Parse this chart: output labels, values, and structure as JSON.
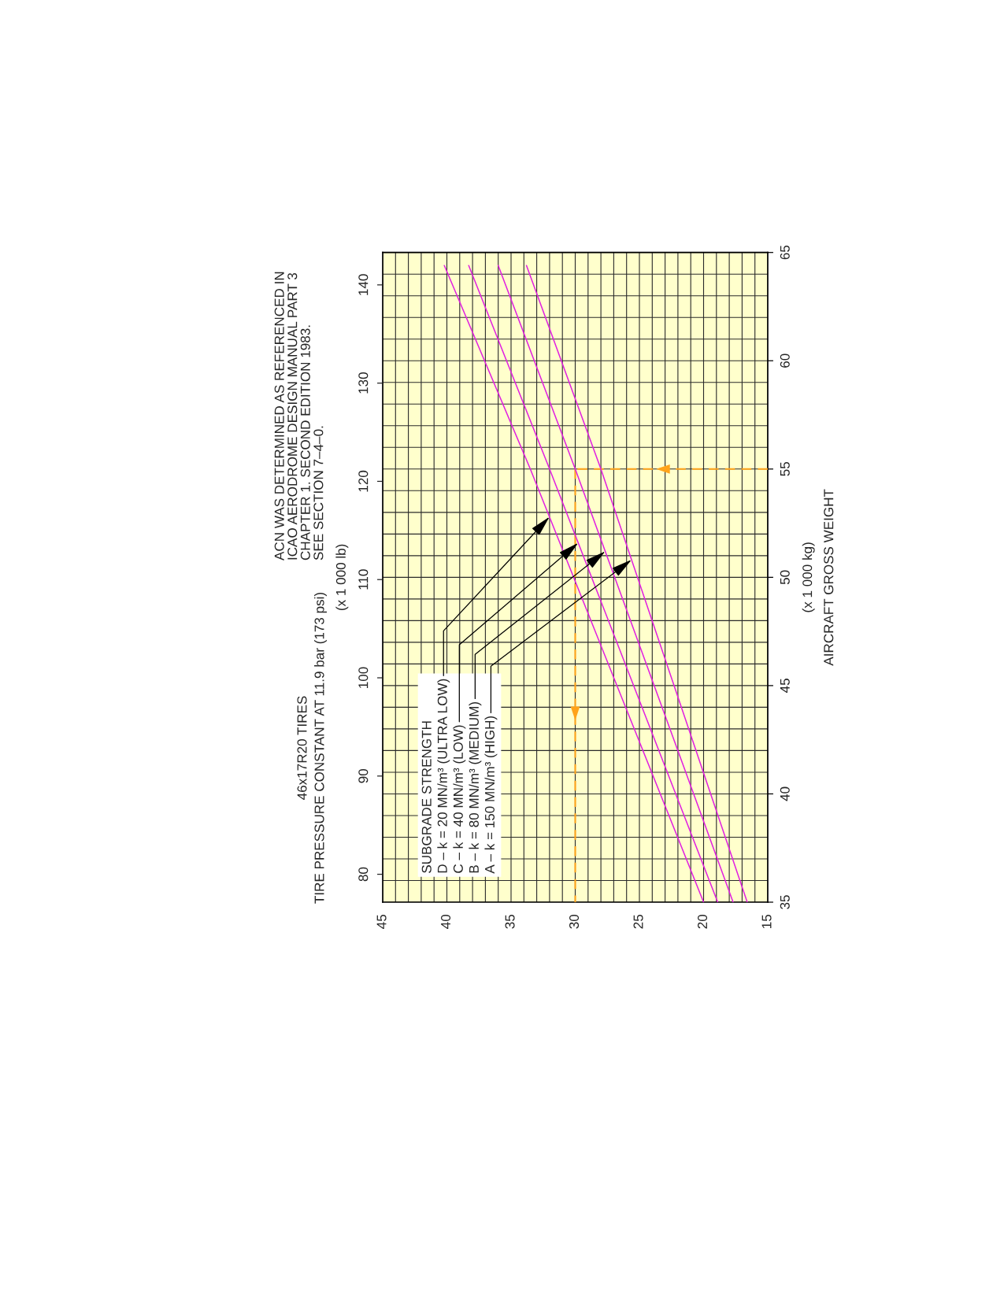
{
  "chart_data": {
    "type": "line",
    "title": "46x17R20 TIRES",
    "subtitle": "TIRE PRESSURE CONSTANT AT 11.9 bar (173 psi)",
    "ylabel": "(x 1 000 kg)\nAIRCRAFT GROSS WEIGHT",
    "y2label": "(x 1 000 lb)",
    "legend_title": "SUBGRADE STRENGTH",
    "legend": "bottom left",
    "grid": true,
    "annotations": [
      "ACN WAS DETERMINED AS REFERENCED IN\nICAO AERODROME DESIGN MANUAL PART 3\nCHAPTER 1. SECOND EDITION 1983.\nSEE SECTION 7–4–0."
    ],
    "xlim": [
      45,
      15
    ],
    "xticks": [
      45,
      {
        "value": 44,
        "label": null
      },
      {
        "value": 43,
        "label": null
      },
      {
        "value": 42,
        "label": null
      },
      {
        "value": 41,
        "label": null
      },
      40,
      {
        "value": 39,
        "label": null
      },
      {
        "value": 38,
        "label": null
      },
      {
        "value": 37,
        "label": null
      },
      {
        "value": 36,
        "label": null
      },
      35,
      {
        "value": 34,
        "label": null
      },
      {
        "value": 33,
        "label": null
      },
      {
        "value": 32,
        "label": null
      },
      {
        "value": 31,
        "label": null
      },
      30,
      {
        "value": 29,
        "label": null
      },
      {
        "value": 28,
        "label": null
      },
      {
        "value": 27,
        "label": null
      },
      {
        "value": 26,
        "label": null
      },
      25,
      {
        "value": 24,
        "label": null
      },
      {
        "value": 23,
        "label": null
      },
      {
        "value": 22,
        "label": null
      },
      {
        "value": 21,
        "label": null
      },
      20,
      {
        "value": 19,
        "label": null
      },
      {
        "value": 18,
        "label": null
      },
      {
        "value": 17,
        "label": null
      },
      {
        "value": 16,
        "label": null
      },
      15
    ],
    "ylim": [
      35,
      65
    ],
    "yticks": [
      35,
      {
        "value": 36,
        "label": null
      },
      {
        "value": 37,
        "label": null
      },
      {
        "value": 38,
        "label": null
      },
      {
        "value": 39,
        "label": null
      },
      40,
      {
        "value": 41,
        "label": null
      },
      {
        "value": 42,
        "label": null
      },
      {
        "value": 43,
        "label": null
      },
      {
        "value": 44,
        "label": null
      },
      45,
      {
        "value": 46,
        "label": null
      },
      {
        "value": 47,
        "label": null
      },
      {
        "value": 48,
        "label": null
      },
      {
        "value": 49,
        "label": null
      },
      50,
      {
        "value": 51,
        "label": null
      },
      {
        "value": 52,
        "label": null
      },
      {
        "value": 53,
        "label": null
      },
      {
        "value": 54,
        "label": null
      },
      55,
      {
        "value": 56,
        "label": null
      },
      {
        "value": 57,
        "label": null
      },
      {
        "value": 58,
        "label": null
      },
      {
        "value": 59,
        "label": null
      },
      60,
      {
        "value": 61,
        "label": null
      },
      {
        "value": 62,
        "label": null
      },
      {
        "value": 63,
        "label": null
      },
      {
        "value": 64,
        "label": null
      },
      65
    ],
    "y2lim": [
      77.16,
      143.3
    ],
    "y2ticks": [
      80,
      90,
      100,
      110,
      120,
      130,
      140
    ],
    "series": [
      {
        "name": "D – k = 20 MN/m³ (ULTRA LOW)",
        "color": "#e020e0",
        "x": [
          20.0,
          33.5,
          40.2
        ],
        "values": [
          35,
          55,
          64.4
        ]
      },
      {
        "name": "C – k = 40 MN/m³ (LOW)",
        "color": "#e020e0",
        "x": [
          18.9,
          32.0,
          38.3
        ],
        "values": [
          35,
          55,
          64.4
        ]
      },
      {
        "name": "B – k = 80 MN/m³ (MEDIUM)",
        "color": "#e020e0",
        "x": [
          17.7,
          30.0,
          36.0
        ],
        "values": [
          35,
          55,
          64.4
        ]
      },
      {
        "name": "A – k = 150 MN/m³ (HIGH)",
        "color": "#e020e0",
        "x": [
          16.6,
          28.0,
          33.8
        ],
        "values": [
          35,
          55,
          64.4
        ]
      }
    ],
    "ref_lines": [
      {
        "axis": "y",
        "value": 55,
        "color": "#ffa31a",
        "line_style": "dashed"
      },
      {
        "axis": "x",
        "value": 30,
        "color": "#ffa31a",
        "line_style": "dashed"
      }
    ]
  }
}
